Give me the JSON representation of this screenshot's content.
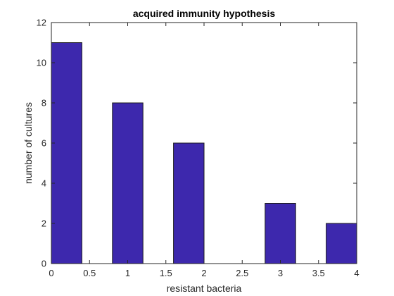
{
  "chart_data": {
    "type": "bar",
    "title": "acquired immunity hypothesis",
    "xlabel": "resistant bacteria",
    "ylabel": "number of cultures",
    "xlim": [
      0,
      4
    ],
    "ylim": [
      0,
      12
    ],
    "xticks": [
      "0",
      "0.5",
      "1",
      "1.5",
      "2",
      "2.5",
      "3",
      "3.5",
      "4"
    ],
    "yticks": [
      "0",
      "2",
      "4",
      "6",
      "8",
      "10",
      "12"
    ],
    "bins": [
      {
        "x0": 0.0,
        "x1": 0.4,
        "value": 11
      },
      {
        "x0": 0.8,
        "x1": 1.2,
        "value": 8
      },
      {
        "x0": 1.6,
        "x1": 2.0,
        "value": 6
      },
      {
        "x0": 2.4,
        "x1": 2.8,
        "value": 0
      },
      {
        "x0": 2.8,
        "x1": 3.2,
        "value": 3
      },
      {
        "x0": 3.6,
        "x1": 4.0,
        "value": 2
      }
    ],
    "bar_color": "#3d28ad",
    "edge_color": "#1a1a1a",
    "grid": false,
    "box": true
  }
}
